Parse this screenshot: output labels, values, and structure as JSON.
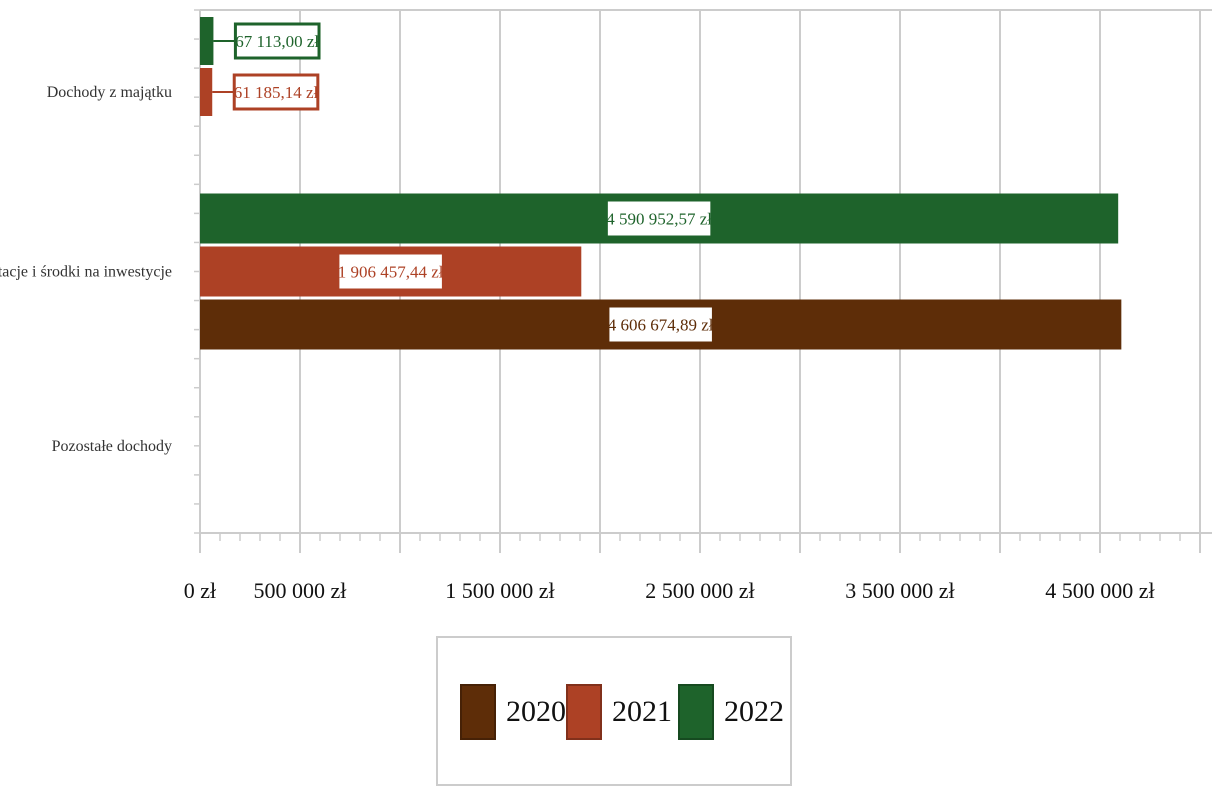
{
  "chart_data": {
    "type": "bar",
    "orientation": "horizontal",
    "categories": [
      "Dochody z majątku",
      "Dotacje i środki na inwestycje",
      "Pozostałe dochody"
    ],
    "series": [
      {
        "name": "2020",
        "color": "#5e2d08",
        "values": [
          null,
          4606674.89,
          null
        ],
        "labels": [
          "",
          "4 606 674,89 zł",
          ""
        ]
      },
      {
        "name": "2021",
        "color": "#ad4125",
        "values": [
          61185.14,
          1906457.44,
          null
        ],
        "labels": [
          "61 185,14 zł",
          "1 906 457,44 zł",
          ""
        ]
      },
      {
        "name": "2022",
        "color": "#1e632b",
        "values": [
          67113.0,
          4590952.57,
          null
        ],
        "labels": [
          "67 113,00 zł",
          "4 590 952,57 zł",
          ""
        ]
      }
    ],
    "xlim": [
      0,
      5000000
    ],
    "x_ticks": [
      0,
      500000,
      1500000,
      2500000,
      3500000,
      4500000
    ],
    "x_tick_labels": [
      "0 zł",
      "500 000 zł",
      "1 500 000 zł",
      "2 500 000 zł",
      "3 500 000 zł",
      "4 500 000 zł"
    ],
    "gridlines": [
      0,
      500000,
      1000000,
      1500000,
      2000000,
      2500000,
      3000000,
      3500000,
      4000000,
      4500000,
      5000000
    ],
    "grid": true,
    "legend_position": "bottom"
  }
}
